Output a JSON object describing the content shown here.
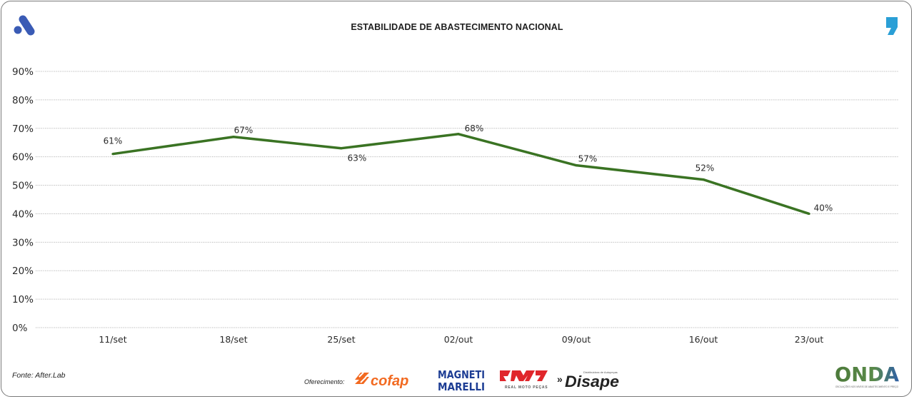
{
  "header": {
    "title": "ESTABILIDADE DE ABASTECIMENTO NACIONAL",
    "left_logo": "brand-a-logo",
    "right_logo": "comma-logo",
    "brand_color": "#3a5bb5",
    "accent_color": "#2a9fd6"
  },
  "chart_data": {
    "type": "line",
    "title": "ESTABILIDADE DE ABASTECIMENTO NACIONAL",
    "xlabel": "",
    "ylabel": "",
    "categories": [
      "11/set",
      "18/set",
      "25/set",
      "02/out",
      "09/out",
      "16/out",
      "23/out"
    ],
    "series": [
      {
        "name": "Estabilidade de abastecimento",
        "color": "#3a7323",
        "values": [
          61,
          67,
          63,
          68,
          57,
          52,
          40
        ],
        "labels": [
          "61%",
          "67%",
          "63%",
          "68%",
          "57%",
          "52%",
          "40%"
        ]
      }
    ],
    "ylim": [
      0,
      90
    ],
    "yticks": [
      0,
      10,
      20,
      30,
      40,
      50,
      60,
      70,
      80,
      90
    ],
    "ytick_labels": [
      "0%",
      "10%",
      "20%",
      "30%",
      "40%",
      "50%",
      "60%",
      "70%",
      "80%",
      "90%"
    ],
    "grid": true,
    "legend": "none"
  },
  "footer": {
    "source": "Fonte: After.Lab",
    "sponsor_label": "Oferecimento:",
    "sponsors": [
      {
        "name": "cofap",
        "color": "#f26a21"
      },
      {
        "name": "MAGNETI MARELLI",
        "color": "#1d3d94"
      },
      {
        "name": "RMP",
        "sub": "REAL MOTO PEÇAS",
        "color": "#e0262b"
      },
      {
        "name": "Disape",
        "sub": "Distribuidora de Autopeças",
        "color": "#222222"
      }
    ],
    "onda": {
      "name": "ONDA",
      "sub": "OSCILAÇÕES NOS NÍVEIS DE ABASTECIMENTO E PREÇO"
    }
  }
}
